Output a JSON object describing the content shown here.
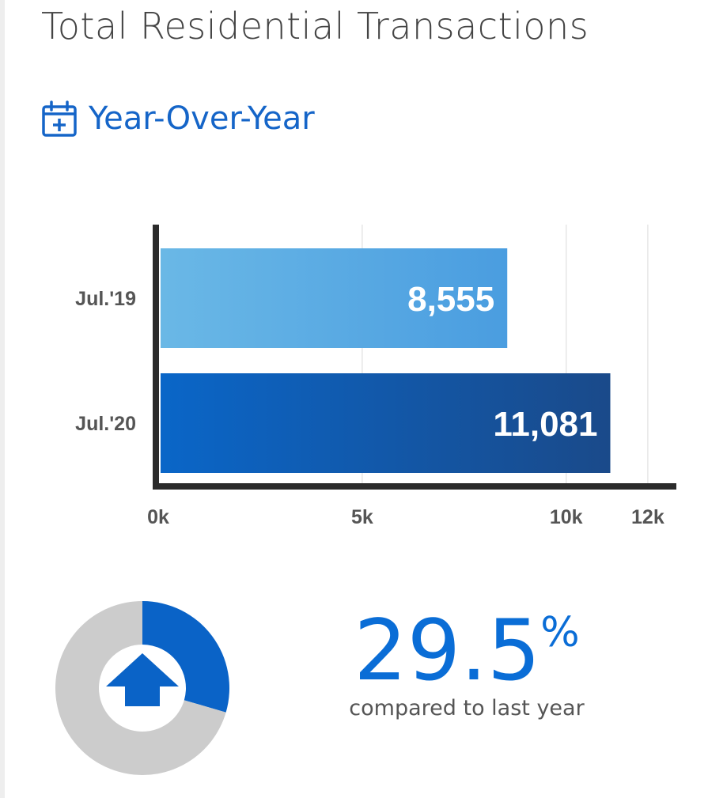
{
  "page": {
    "title": "Total Residential Transactions",
    "section_label": "Year-Over-Year",
    "section_icon": "calendar-plus-icon"
  },
  "chart_data": [
    {
      "type": "bar",
      "orientation": "horizontal",
      "categories": [
        "Jul.'19",
        "Jul.'20"
      ],
      "values": [
        8555,
        11081
      ],
      "value_labels": [
        "8,555",
        "11,081"
      ],
      "xlim": [
        0,
        12700
      ],
      "x_ticks": [
        0,
        5000,
        10000,
        12000
      ],
      "x_tick_labels": [
        "0k",
        "5k",
        "10k",
        "12k"
      ],
      "grid": true,
      "colors": [
        [
          "#6ab8e6",
          "#4a9de0"
        ],
        [
          "#0a66c8",
          "#1a4a8a"
        ]
      ]
    },
    {
      "type": "pie",
      "style": "donut",
      "values": [
        29.5,
        70.5
      ],
      "colors": [
        "#0a63c7",
        "#cccccc"
      ],
      "center_icon": "arrow-up-icon"
    }
  ],
  "summary": {
    "change_value": "29.5",
    "change_unit": "%",
    "caption": "compared to last year",
    "accent_color": "#0a6dd6"
  }
}
